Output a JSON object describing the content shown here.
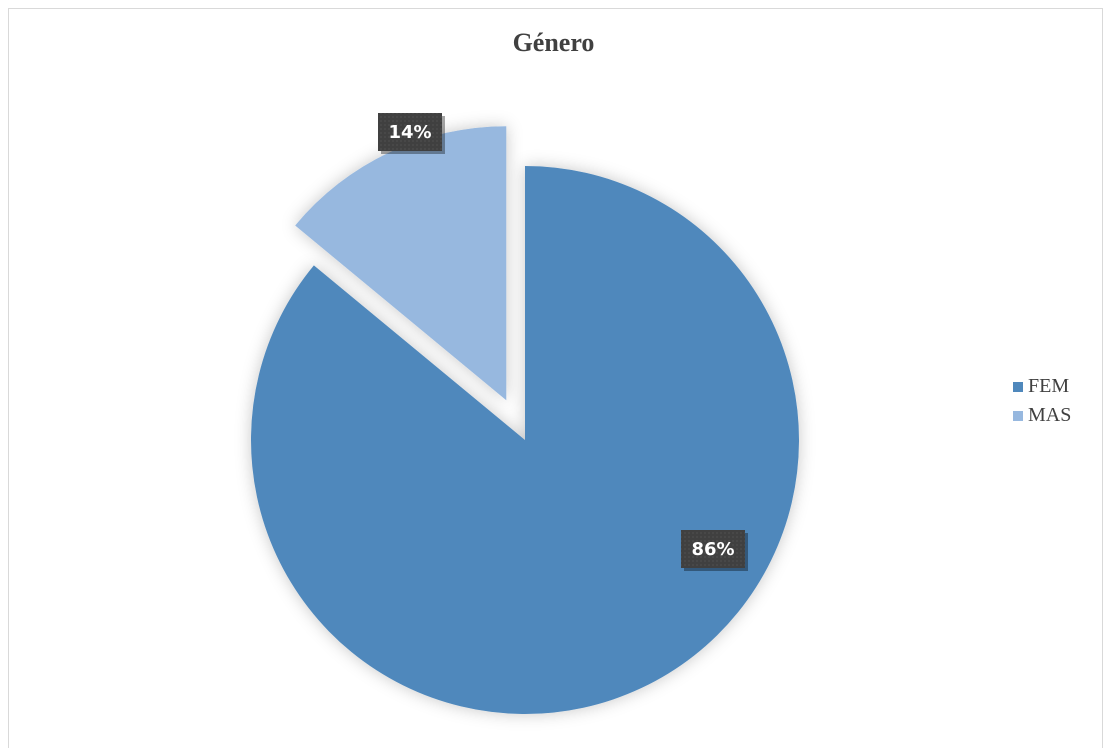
{
  "chart_data": {
    "type": "pie",
    "title": "Género",
    "categories": [
      "FEM",
      "MAS"
    ],
    "values": [
      86,
      14
    ],
    "labels": [
      "86%",
      "14%"
    ],
    "colors": [
      "#4f88bc",
      "#97b8df"
    ],
    "legend_position": "right",
    "exploded": [
      "MAS"
    ]
  }
}
